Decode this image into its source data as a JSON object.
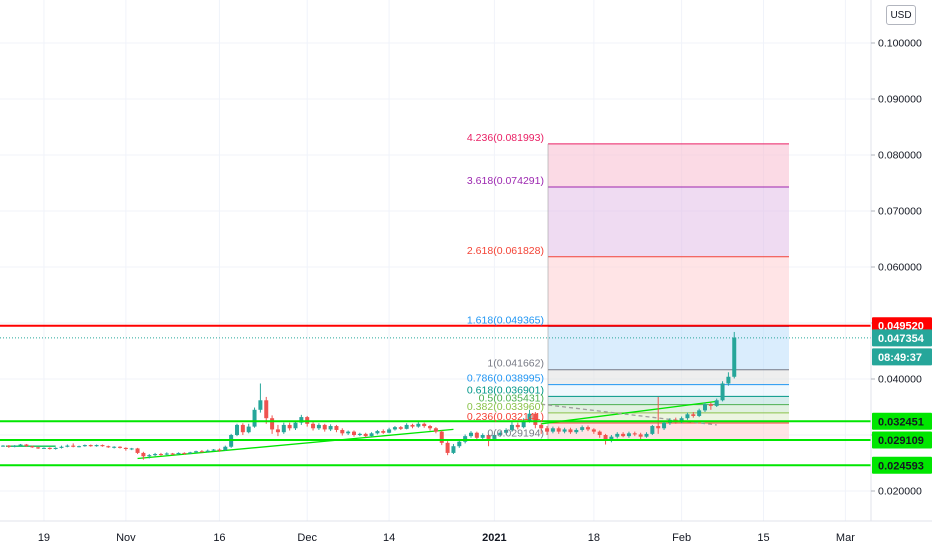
{
  "currency_button": "USD",
  "colors": {
    "up": "#26a69a",
    "down": "#ef5350",
    "support": "#00e600",
    "resistance": "#ff0000",
    "last_price": "#26a69a"
  },
  "chart_data": {
    "type": "candlestick",
    "y_axis": {
      "scale": "linear",
      "ticks": [
        "0.100000",
        "0.090000",
        "0.080000",
        "0.070000",
        "0.060000",
        "0.050000",
        "0.040000",
        "0.030000",
        "0.020000"
      ],
      "range": [
        0.0155,
        0.1055
      ]
    },
    "x_axis": {
      "ticks": [
        "19",
        "Nov",
        "16",
        "Dec",
        "14",
        "2021",
        "18",
        "Feb",
        "15",
        "Mar"
      ]
    },
    "grid": true,
    "price_labels": [
      {
        "text": "0.049520",
        "value": 0.04952,
        "role": "resistance"
      },
      {
        "text": "0.047354",
        "value": 0.047354,
        "role": "last"
      },
      {
        "text": "08:49:37",
        "role": "countdown"
      },
      {
        "text": "0.032451",
        "value": 0.032451,
        "role": "support"
      },
      {
        "text": "0.029109",
        "value": 0.029109,
        "role": "support"
      },
      {
        "text": "0.024593",
        "value": 0.024593,
        "role": "support"
      }
    ],
    "horizontal_lines": [
      {
        "value": 0.04952,
        "color": "#ff0000"
      },
      {
        "value": 0.032451,
        "color": "#00e600"
      },
      {
        "value": 0.029109,
        "color": "#00e600"
      },
      {
        "value": 0.024593,
        "color": "#00e600"
      }
    ],
    "fib_levels": [
      {
        "text": "4.236(0.081993)",
        "value": 0.081993,
        "color": "#e91e63"
      },
      {
        "text": "3.618(0.074291)",
        "value": 0.074291,
        "color": "#9c27b0"
      },
      {
        "text": "2.618(0.061828)",
        "value": 0.061828,
        "color": "#f44336"
      },
      {
        "text": "1.618(0.049365)",
        "value": 0.049365,
        "color": "#2196f3"
      },
      {
        "text": "1(0.041662)",
        "value": 0.041662,
        "color": "#787b86"
      },
      {
        "text": "0.786(0.038995)",
        "value": 0.038995,
        "color": "#2196f3"
      },
      {
        "text": "0.618(0.036901)",
        "value": 0.036901,
        "color": "#009688"
      },
      {
        "text": "0.5(0.035431)",
        "value": 0.035431,
        "color": "#4caf50"
      },
      {
        "text": "0.382(0.033960)",
        "value": 0.03396,
        "color": "#8bc34a"
      },
      {
        "text": "0.236(0.032141)",
        "value": 0.032141,
        "color": "#f44336"
      },
      {
        "text": "0(0.029194)",
        "value": 0.029194,
        "color": "#787b86"
      }
    ],
    "fib_fills": [
      {
        "from": 0.074291,
        "to": 0.081993,
        "color": "#f8bbd0"
      },
      {
        "from": 0.061828,
        "to": 0.074291,
        "color": "#e1bee7"
      },
      {
        "from": 0.049365,
        "to": 0.061828,
        "color": "#ffcdd2"
      },
      {
        "from": 0.041662,
        "to": 0.049365,
        "color": "#bbdefb"
      },
      {
        "from": 0.038995,
        "to": 0.041662,
        "color": "#e0e0e0"
      },
      {
        "from": 0.036901,
        "to": 0.038995,
        "color": "#e3f2fd"
      },
      {
        "from": 0.035431,
        "to": 0.036901,
        "color": "#b2dfdb"
      },
      {
        "from": 0.03396,
        "to": 0.035431,
        "color": "#c8e6c9"
      },
      {
        "from": 0.032141,
        "to": 0.03396,
        "color": "#dcedc8"
      },
      {
        "from": 0.029194,
        "to": 0.032141,
        "color": "#ffcdd2"
      }
    ],
    "candles": [
      [
        0.028,
        0.0281,
        0.0279,
        0.0282
      ],
      [
        0.0281,
        0.0279,
        0.0277,
        0.0282
      ],
      [
        0.0279,
        0.0281,
        0.0278,
        0.0282
      ],
      [
        0.0281,
        0.0283,
        0.028,
        0.0284
      ],
      [
        0.0283,
        0.028,
        0.0279,
        0.0284
      ],
      [
        0.028,
        0.0278,
        0.0277,
        0.0281
      ],
      [
        0.0278,
        0.0276,
        0.0275,
        0.0279
      ],
      [
        0.0276,
        0.0277,
        0.0275,
        0.0278
      ],
      [
        0.0277,
        0.0275,
        0.0274,
        0.0278
      ],
      [
        0.0275,
        0.0277,
        0.0274,
        0.0278
      ],
      [
        0.0277,
        0.0279,
        0.0276,
        0.0281
      ],
      [
        0.0279,
        0.0281,
        0.0278,
        0.0283
      ],
      [
        0.0281,
        0.0279,
        0.0278,
        0.0285
      ],
      [
        0.0279,
        0.028,
        0.0278,
        0.0281
      ],
      [
        0.028,
        0.0282,
        0.0279,
        0.0283
      ],
      [
        0.0282,
        0.028,
        0.0279,
        0.0283
      ],
      [
        0.028,
        0.0282,
        0.0279,
        0.0283
      ],
      [
        0.0282,
        0.028,
        0.0279,
        0.0283
      ],
      [
        0.028,
        0.0278,
        0.0277,
        0.0281
      ],
      [
        0.0278,
        0.0279,
        0.0276,
        0.028
      ],
      [
        0.0279,
        0.0277,
        0.0276,
        0.028
      ],
      [
        0.0277,
        0.0275,
        0.0272,
        0.0278
      ],
      [
        0.0275,
        0.0276,
        0.0273,
        0.0277
      ],
      [
        0.0276,
        0.0268,
        0.0266,
        0.0277
      ],
      [
        0.0268,
        0.0262,
        0.0256,
        0.027
      ],
      [
        0.0262,
        0.0264,
        0.0258,
        0.0266
      ],
      [
        0.0264,
        0.0266,
        0.0262,
        0.0268
      ],
      [
        0.0266,
        0.0265,
        0.0263,
        0.0268
      ],
      [
        0.0265,
        0.0267,
        0.0264,
        0.0269
      ],
      [
        0.0267,
        0.0266,
        0.0264,
        0.0268
      ],
      [
        0.0266,
        0.0268,
        0.0265,
        0.0269
      ],
      [
        0.0268,
        0.0267,
        0.0265,
        0.0269
      ],
      [
        0.0267,
        0.0269,
        0.0266,
        0.027
      ],
      [
        0.0269,
        0.0271,
        0.0268,
        0.0272
      ],
      [
        0.0271,
        0.027,
        0.0269,
        0.0273
      ],
      [
        0.027,
        0.0272,
        0.0269,
        0.0274
      ],
      [
        0.0272,
        0.0274,
        0.0271,
        0.0275
      ],
      [
        0.0274,
        0.0273,
        0.027,
        0.0276
      ],
      [
        0.0273,
        0.0279,
        0.0272,
        0.0281
      ],
      [
        0.0279,
        0.03,
        0.0277,
        0.0302
      ],
      [
        0.03,
        0.0318,
        0.0298,
        0.032
      ],
      [
        0.0318,
        0.0305,
        0.03,
        0.0321
      ],
      [
        0.0305,
        0.0315,
        0.0303,
        0.032
      ],
      [
        0.0315,
        0.0345,
        0.0313,
        0.0349
      ],
      [
        0.0345,
        0.0362,
        0.034,
        0.0392
      ],
      [
        0.0362,
        0.033,
        0.032,
        0.0368
      ],
      [
        0.033,
        0.031,
        0.0302,
        0.0335
      ],
      [
        0.031,
        0.0305,
        0.0298,
        0.0318
      ],
      [
        0.0305,
        0.0318,
        0.0302,
        0.0322
      ],
      [
        0.0318,
        0.0312,
        0.0308,
        0.0322
      ],
      [
        0.0312,
        0.0322,
        0.0309,
        0.0325
      ],
      [
        0.0322,
        0.0332,
        0.0318,
        0.0336
      ],
      [
        0.0332,
        0.032,
        0.0315,
        0.0334
      ],
      [
        0.032,
        0.0312,
        0.0308,
        0.0323
      ],
      [
        0.0312,
        0.0318,
        0.0309,
        0.0321
      ],
      [
        0.0318,
        0.031,
        0.0306,
        0.032
      ],
      [
        0.031,
        0.0316,
        0.0307,
        0.0319
      ],
      [
        0.0316,
        0.0309,
        0.0305,
        0.0318
      ],
      [
        0.0309,
        0.0303,
        0.0299,
        0.0312
      ],
      [
        0.0303,
        0.0306,
        0.03,
        0.0308
      ],
      [
        0.0306,
        0.03,
        0.0297,
        0.0308
      ],
      [
        0.03,
        0.0302,
        0.0298,
        0.0304
      ],
      [
        0.0302,
        0.0298,
        0.0296,
        0.0304
      ],
      [
        0.0298,
        0.0303,
        0.0297,
        0.0305
      ],
      [
        0.0303,
        0.0307,
        0.0301,
        0.0309
      ],
      [
        0.0307,
        0.0304,
        0.0302,
        0.031
      ],
      [
        0.0304,
        0.031,
        0.0303,
        0.0313
      ],
      [
        0.031,
        0.0314,
        0.0308,
        0.0316
      ],
      [
        0.0314,
        0.0311,
        0.0309,
        0.0316
      ],
      [
        0.0311,
        0.0318,
        0.031,
        0.0321
      ],
      [
        0.0318,
        0.0315,
        0.0312,
        0.032
      ],
      [
        0.0315,
        0.032,
        0.0313,
        0.0323
      ],
      [
        0.032,
        0.0316,
        0.0313,
        0.0322
      ],
      [
        0.0316,
        0.0312,
        0.0308,
        0.0318
      ],
      [
        0.0312,
        0.0306,
        0.0303,
        0.0314
      ],
      [
        0.0306,
        0.0286,
        0.0282,
        0.0308
      ],
      [
        0.0286,
        0.0268,
        0.0264,
        0.0289
      ],
      [
        0.0268,
        0.028,
        0.0266,
        0.0284
      ],
      [
        0.028,
        0.0288,
        0.0277,
        0.0292
      ],
      [
        0.0288,
        0.0298,
        0.0285,
        0.0301
      ],
      [
        0.0298,
        0.0304,
        0.0295,
        0.0307
      ],
      [
        0.0304,
        0.0295,
        0.0291,
        0.0306
      ],
      [
        0.0295,
        0.03,
        0.029,
        0.0303
      ],
      [
        0.03,
        0.0293,
        0.028,
        0.0302
      ],
      [
        0.0293,
        0.03,
        0.0291,
        0.0303
      ],
      [
        0.03,
        0.0304,
        0.0297,
        0.0307
      ],
      [
        0.0304,
        0.0309,
        0.0301,
        0.0312
      ],
      [
        0.0309,
        0.0318,
        0.0306,
        0.0323
      ],
      [
        0.0318,
        0.0314,
        0.031,
        0.0322
      ],
      [
        0.0314,
        0.0326,
        0.0312,
        0.033
      ],
      [
        0.0326,
        0.0338,
        0.0322,
        0.0345
      ],
      [
        0.0338,
        0.0318,
        0.0312,
        0.0341
      ],
      [
        0.0318,
        0.0312,
        0.0302,
        0.0321
      ],
      [
        0.0312,
        0.0306,
        0.03,
        0.0316
      ],
      [
        0.0306,
        0.0312,
        0.0303,
        0.0315
      ],
      [
        0.0312,
        0.0306,
        0.0302,
        0.0315
      ],
      [
        0.0306,
        0.031,
        0.0303,
        0.0313
      ],
      [
        0.031,
        0.0305,
        0.0302,
        0.0313
      ],
      [
        0.0305,
        0.0309,
        0.0302,
        0.0312
      ],
      [
        0.0309,
        0.0314,
        0.0306,
        0.0317
      ],
      [
        0.0314,
        0.031,
        0.0307,
        0.0317
      ],
      [
        0.031,
        0.0306,
        0.0302,
        0.0312
      ],
      [
        0.0306,
        0.03,
        0.0295,
        0.0308
      ],
      [
        0.03,
        0.029,
        0.0283,
        0.0302
      ],
      [
        0.029,
        0.0297,
        0.0287,
        0.03
      ],
      [
        0.0297,
        0.0302,
        0.0294,
        0.0305
      ],
      [
        0.0302,
        0.0298,
        0.0296,
        0.0305
      ],
      [
        0.0298,
        0.0303,
        0.0295,
        0.0306
      ],
      [
        0.0303,
        0.0301,
        0.0298,
        0.0306
      ],
      [
        0.0301,
        0.0297,
        0.0292,
        0.0304
      ],
      [
        0.0297,
        0.0302,
        0.0295,
        0.0305
      ],
      [
        0.0302,
        0.0316,
        0.03,
        0.0318
      ],
      [
        0.0316,
        0.0312,
        0.0302,
        0.0368
      ],
      [
        0.0312,
        0.0322,
        0.0309,
        0.0325
      ],
      [
        0.0322,
        0.0327,
        0.0318,
        0.033
      ],
      [
        0.0327,
        0.0323,
        0.032,
        0.0331
      ],
      [
        0.0323,
        0.033,
        0.0321,
        0.0333
      ],
      [
        0.033,
        0.0337,
        0.0327,
        0.034
      ],
      [
        0.0337,
        0.0334,
        0.0331,
        0.0341
      ],
      [
        0.0334,
        0.0344,
        0.0332,
        0.0347
      ],
      [
        0.0344,
        0.0355,
        0.0341,
        0.0358
      ],
      [
        0.0355,
        0.0352,
        0.0345,
        0.0358
      ],
      [
        0.0352,
        0.0362,
        0.035,
        0.0365
      ],
      [
        0.0362,
        0.0392,
        0.036,
        0.0396
      ],
      [
        0.0392,
        0.0404,
        0.0388,
        0.0412
      ],
      [
        0.0404,
        0.0474,
        0.0401,
        0.0484
      ]
    ],
    "trendlines": [
      {
        "points": [
          [
            0.5,
            0.028
          ],
          [
            9,
            0.028
          ]
        ],
        "color": "#00c853"
      },
      {
        "points": [
          [
            23,
            0.0258
          ],
          [
            77,
            0.031
          ]
        ],
        "color": "#00e600"
      },
      {
        "points": [
          [
            92,
            0.032
          ],
          [
            122,
            0.036
          ]
        ],
        "color": "#00e600"
      },
      {
        "points": [
          [
            92,
            0.0355
          ],
          [
            122,
            0.0318
          ]
        ],
        "color": "#9e9e9e",
        "dashed": true
      }
    ]
  }
}
